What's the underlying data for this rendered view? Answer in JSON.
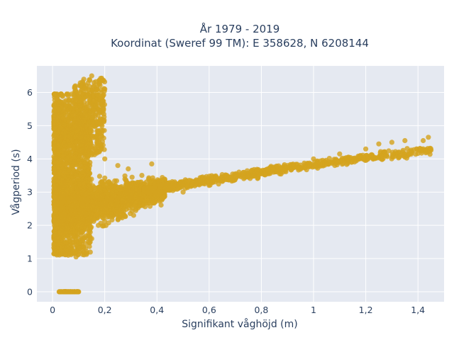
{
  "chart_data": {
    "type": "scatter",
    "title_lines": [
      "År 1979 - 2019",
      "Koordinat (Sweref 99 TM): E 358628, N 6208144"
    ],
    "xlabel": "Signifikant våghöjd (m)",
    "ylabel": "Vågperiod (s)",
    "xlim": [
      -0.06,
      1.5
    ],
    "ylim": [
      -0.3,
      6.8
    ],
    "x_ticks": [
      0,
      0.2,
      0.4,
      0.6,
      0.8,
      1,
      1.2,
      1.4
    ],
    "x_tick_labels": [
      "0",
      "0,2",
      "0,4",
      "0,6",
      "0,8",
      "1",
      "1,2",
      "1,4"
    ],
    "y_ticks": [
      0,
      1,
      2,
      3,
      4,
      5,
      6
    ],
    "y_tick_labels": [
      "0",
      "1",
      "2",
      "3",
      "4",
      "5",
      "6"
    ],
    "grid": true,
    "colors": {
      "marker": "#d4a41f",
      "plot_bg": "#e5e9f1",
      "grid": "#ffffff",
      "text": "#2a3f5f"
    },
    "series": [
      {
        "points": [
          [
            0.03,
            0
          ],
          [
            0.05,
            0
          ],
          [
            0.07,
            0
          ],
          [
            0.09,
            0
          ],
          [
            0.095,
            0
          ],
          [
            0.02,
            1.6
          ],
          [
            0.03,
            2.1
          ],
          [
            0.03,
            3.9
          ],
          [
            0.04,
            4.8
          ],
          [
            0.05,
            5.6
          ],
          [
            0.06,
            5.9
          ],
          [
            0.08,
            5.4
          ],
          [
            0.1,
            5.2
          ],
          [
            0.12,
            5.5
          ],
          [
            0.14,
            5.9
          ],
          [
            0.16,
            6.2
          ],
          [
            0.12,
            6.4
          ],
          [
            0.15,
            6.5
          ],
          [
            0.18,
            6.35
          ],
          [
            0.2,
            6.1
          ],
          [
            0.06,
            1.1
          ],
          [
            0.09,
            1.05
          ],
          [
            0.1,
            1.3
          ],
          [
            0.15,
            1.6
          ],
          [
            0.2,
            2.4
          ],
          [
            0.25,
            2.6
          ],
          [
            0.3,
            2.9
          ],
          [
            0.35,
            2.7
          ],
          [
            0.4,
            2.8
          ],
          [
            0.2,
            4.0
          ],
          [
            0.25,
            3.8
          ],
          [
            0.29,
            3.7
          ],
          [
            0.38,
            3.85
          ],
          [
            0.5,
            3.0
          ],
          [
            0.6,
            3.2
          ],
          [
            0.7,
            3.4
          ],
          [
            0.8,
            3.55
          ],
          [
            0.9,
            3.8
          ],
          [
            1.0,
            4.0
          ],
          [
            1.1,
            4.15
          ],
          [
            1.2,
            4.3
          ],
          [
            1.25,
            4.45
          ],
          [
            1.3,
            4.5
          ],
          [
            1.35,
            4.55
          ],
          [
            1.42,
            4.55
          ],
          [
            1.44,
            4.65
          ]
        ]
      }
    ]
  }
}
